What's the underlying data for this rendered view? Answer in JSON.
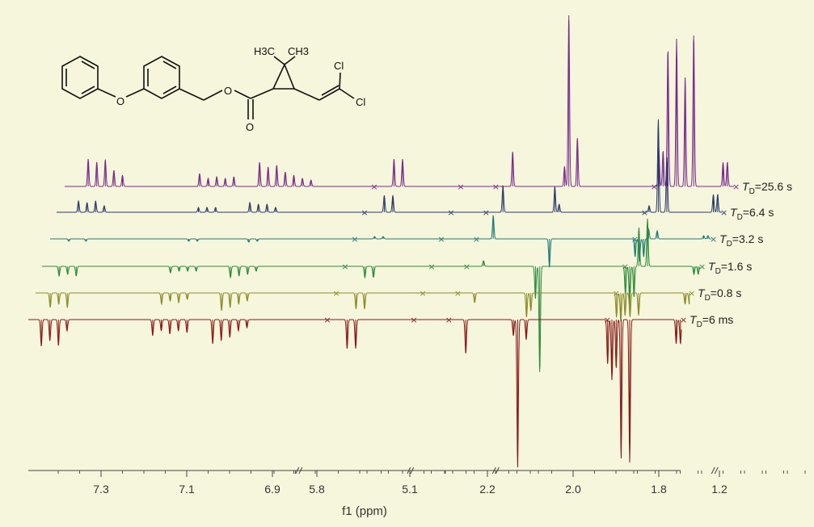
{
  "molecule": {
    "labels": {
      "methyl_left": "H3C",
      "methyl_right": "CH3",
      "chlorine_top": "Cl",
      "chlorine_bottom": "Cl",
      "ether_oxygen": "O",
      "ester_oxygen": "O",
      "carbonyl_oxygen": "O"
    }
  },
  "chart_data": {
    "type": "line",
    "xlabel": "f1 (ppm)",
    "tick_labels": [
      "7.3",
      "7.1",
      "6.9",
      "5.8",
      "5.1",
      "2.2",
      "2.0",
      "1.8",
      "1.2"
    ],
    "axis_breaks": 4,
    "series": [
      {
        "name": "T_D=25.6 s",
        "label_main": "T",
        "label_sub": "D",
        "label_value": "=25.6 s",
        "color": "#7a2a8c",
        "peaks": [
          {
            "ppm": 7.33,
            "height": 34
          },
          {
            "ppm": 7.31,
            "height": 30
          },
          {
            "ppm": 7.29,
            "height": 33
          },
          {
            "ppm": 7.27,
            "height": 20
          },
          {
            "ppm": 7.25,
            "height": 14
          },
          {
            "ppm": 7.07,
            "height": 16
          },
          {
            "ppm": 7.05,
            "height": 10
          },
          {
            "ppm": 7.03,
            "height": 12
          },
          {
            "ppm": 7.01,
            "height": 10
          },
          {
            "ppm": 6.99,
            "height": 12
          },
          {
            "ppm": 6.93,
            "height": 30
          },
          {
            "ppm": 6.91,
            "height": 24
          },
          {
            "ppm": 6.89,
            "height": 26
          },
          {
            "ppm": 6.87,
            "height": 18
          },
          {
            "ppm": 6.85,
            "height": 14
          },
          {
            "ppm": 6.83,
            "height": 10
          },
          {
            "ppm": 6.81,
            "height": 8
          },
          {
            "ppm": 5.62,
            "height": 34
          },
          {
            "ppm": 5.6,
            "height": 34
          },
          {
            "ppm": 4.86,
            "height": 43
          },
          {
            "ppm": 2.02,
            "height": 25
          },
          {
            "ppm": 2.01,
            "height": 212
          },
          {
            "ppm": 1.99,
            "height": 60
          },
          {
            "ppm": 1.8,
            "height": 48
          },
          {
            "ppm": 1.79,
            "height": 44
          },
          {
            "ppm": 1.78,
            "height": 30
          },
          {
            "ppm": 1.65,
            "height": 30
          },
          {
            "ppm": 1.64,
            "height": 30
          },
          {
            "ppm": 1.32,
            "height": 150
          },
          {
            "ppm": 1.3,
            "height": 183
          },
          {
            "ppm": 1.28,
            "height": 135
          },
          {
            "ppm": 1.26,
            "height": 187
          }
        ]
      },
      {
        "name": "T_D=6.4 s",
        "label_main": "T",
        "label_sub": "D",
        "label_value": "=6.4 s",
        "color": "#2a3c6a",
        "peaks": [
          {
            "ppm": 7.33,
            "height": 14
          },
          {
            "ppm": 7.31,
            "height": 12
          },
          {
            "ppm": 7.29,
            "height": 14
          },
          {
            "ppm": 7.27,
            "height": 8
          },
          {
            "ppm": 7.05,
            "height": 6
          },
          {
            "ppm": 7.03,
            "height": 6
          },
          {
            "ppm": 7.01,
            "height": 6
          },
          {
            "ppm": 6.93,
            "height": 12
          },
          {
            "ppm": 6.91,
            "height": 10
          },
          {
            "ppm": 6.89,
            "height": 10
          },
          {
            "ppm": 6.87,
            "height": 6
          },
          {
            "ppm": 5.62,
            "height": 21
          },
          {
            "ppm": 5.6,
            "height": 21
          },
          {
            "ppm": 4.86,
            "height": 33
          },
          {
            "ppm": 2.02,
            "height": 32
          },
          {
            "ppm": 2.01,
            "height": 10
          },
          {
            "ppm": 1.8,
            "height": 8
          },
          {
            "ppm": 1.65,
            "height": 22
          },
          {
            "ppm": 1.64,
            "height": 22
          },
          {
            "ppm": 1.32,
            "height": 115
          },
          {
            "ppm": 1.3,
            "height": 68
          }
        ]
      },
      {
        "name": "T_D=3.2 s",
        "label_main": "T",
        "label_sub": "D",
        "label_value": "=3.2 s",
        "color": "#1e7a78",
        "peaks": [
          {
            "ppm": 7.33,
            "height": -3
          },
          {
            "ppm": 7.29,
            "height": -3
          },
          {
            "ppm": 7.05,
            "height": -3
          },
          {
            "ppm": 7.03,
            "height": -3
          },
          {
            "ppm": 6.91,
            "height": -4
          },
          {
            "ppm": 6.89,
            "height": -3
          },
          {
            "ppm": 5.62,
            "height": 3
          },
          {
            "ppm": 5.6,
            "height": 3
          },
          {
            "ppm": 4.86,
            "height": 29
          },
          {
            "ppm": 2.01,
            "height": -35
          },
          {
            "ppm": 1.81,
            "height": -22
          },
          {
            "ppm": 1.8,
            "height": -28
          },
          {
            "ppm": 1.79,
            "height": -22
          },
          {
            "ppm": 1.65,
            "height": 4
          },
          {
            "ppm": 1.64,
            "height": 4
          },
          {
            "ppm": 1.32,
            "height": 12
          },
          {
            "ppm": 1.3,
            "height": 10
          }
        ]
      },
      {
        "name": "T_D=1.6 s",
        "label_main": "T",
        "label_sub": "D",
        "label_value": "=1.6 s",
        "color": "#2e8a3a",
        "peaks": [
          {
            "ppm": 7.33,
            "height": -12
          },
          {
            "ppm": 7.31,
            "height": -10
          },
          {
            "ppm": 7.29,
            "height": -12
          },
          {
            "ppm": 7.07,
            "height": -8
          },
          {
            "ppm": 7.05,
            "height": -6
          },
          {
            "ppm": 7.03,
            "height": -6
          },
          {
            "ppm": 7.01,
            "height": -6
          },
          {
            "ppm": 6.93,
            "height": -14
          },
          {
            "ppm": 6.91,
            "height": -12
          },
          {
            "ppm": 6.89,
            "height": -10
          },
          {
            "ppm": 6.87,
            "height": -6
          },
          {
            "ppm": 5.62,
            "height": -14
          },
          {
            "ppm": 5.6,
            "height": -14
          },
          {
            "ppm": 4.86,
            "height": 7
          },
          {
            "ppm": 2.02,
            "height": -40
          },
          {
            "ppm": 2.01,
            "height": -131
          },
          {
            "ppm": 1.81,
            "height": -35
          },
          {
            "ppm": 1.8,
            "height": -48
          },
          {
            "ppm": 1.79,
            "height": -38
          },
          {
            "ppm": 1.65,
            "height": -10
          },
          {
            "ppm": 1.64,
            "height": -10
          },
          {
            "ppm": 1.32,
            "height": 48
          },
          {
            "ppm": 1.3,
            "height": 59
          }
        ]
      },
      {
        "name": "T_D=0.8 s",
        "label_main": "T",
        "label_sub": "D",
        "label_value": "=0.8 s",
        "color": "#8a8a2a",
        "peaks": [
          {
            "ppm": 7.33,
            "height": -18
          },
          {
            "ppm": 7.31,
            "height": -14
          },
          {
            "ppm": 7.29,
            "height": -18
          },
          {
            "ppm": 7.07,
            "height": -14
          },
          {
            "ppm": 7.05,
            "height": -10
          },
          {
            "ppm": 7.03,
            "height": -12
          },
          {
            "ppm": 7.01,
            "height": -8
          },
          {
            "ppm": 6.93,
            "height": -22
          },
          {
            "ppm": 6.91,
            "height": -18
          },
          {
            "ppm": 6.89,
            "height": -14
          },
          {
            "ppm": 6.87,
            "height": -10
          },
          {
            "ppm": 5.62,
            "height": -20
          },
          {
            "ppm": 5.6,
            "height": -20
          },
          {
            "ppm": 4.86,
            "height": -12
          },
          {
            "ppm": 2.02,
            "height": -30
          },
          {
            "ppm": 2.01,
            "height": -22
          },
          {
            "ppm": 1.81,
            "height": -30
          },
          {
            "ppm": 1.8,
            "height": -36
          },
          {
            "ppm": 1.79,
            "height": -28
          },
          {
            "ppm": 1.65,
            "height": -14
          },
          {
            "ppm": 1.64,
            "height": -14
          },
          {
            "ppm": 1.32,
            "height": -30
          },
          {
            "ppm": 1.3,
            "height": -28
          }
        ]
      },
      {
        "name": "T_D=6 ms",
        "label_main": "T",
        "label_sub": "D",
        "label_value": "=6 ms",
        "color": "#8a1a1a",
        "peaks": [
          {
            "ppm": 7.33,
            "height": -33
          },
          {
            "ppm": 7.31,
            "height": -26
          },
          {
            "ppm": 7.29,
            "height": -32
          },
          {
            "ppm": 7.27,
            "height": -14
          },
          {
            "ppm": 7.07,
            "height": -20
          },
          {
            "ppm": 7.05,
            "height": -14
          },
          {
            "ppm": 7.03,
            "height": -18
          },
          {
            "ppm": 7.01,
            "height": -14
          },
          {
            "ppm": 6.99,
            "height": -16
          },
          {
            "ppm": 6.93,
            "height": -30
          },
          {
            "ppm": 6.91,
            "height": -26
          },
          {
            "ppm": 6.89,
            "height": -22
          },
          {
            "ppm": 6.87,
            "height": -14
          },
          {
            "ppm": 6.85,
            "height": -10
          },
          {
            "ppm": 5.62,
            "height": -36
          },
          {
            "ppm": 5.6,
            "height": -36
          },
          {
            "ppm": 4.86,
            "height": -42
          },
          {
            "ppm": 2.03,
            "height": -20
          },
          {
            "ppm": 2.02,
            "height": -183
          },
          {
            "ppm": 2.0,
            "height": -25
          },
          {
            "ppm": 1.81,
            "height": -55
          },
          {
            "ppm": 1.8,
            "height": -75
          },
          {
            "ppm": 1.79,
            "height": -60
          },
          {
            "ppm": 1.65,
            "height": -30
          },
          {
            "ppm": 1.64,
            "height": -30
          },
          {
            "ppm": 1.32,
            "height": -172
          },
          {
            "ppm": 1.3,
            "height": -177
          }
        ]
      }
    ]
  }
}
